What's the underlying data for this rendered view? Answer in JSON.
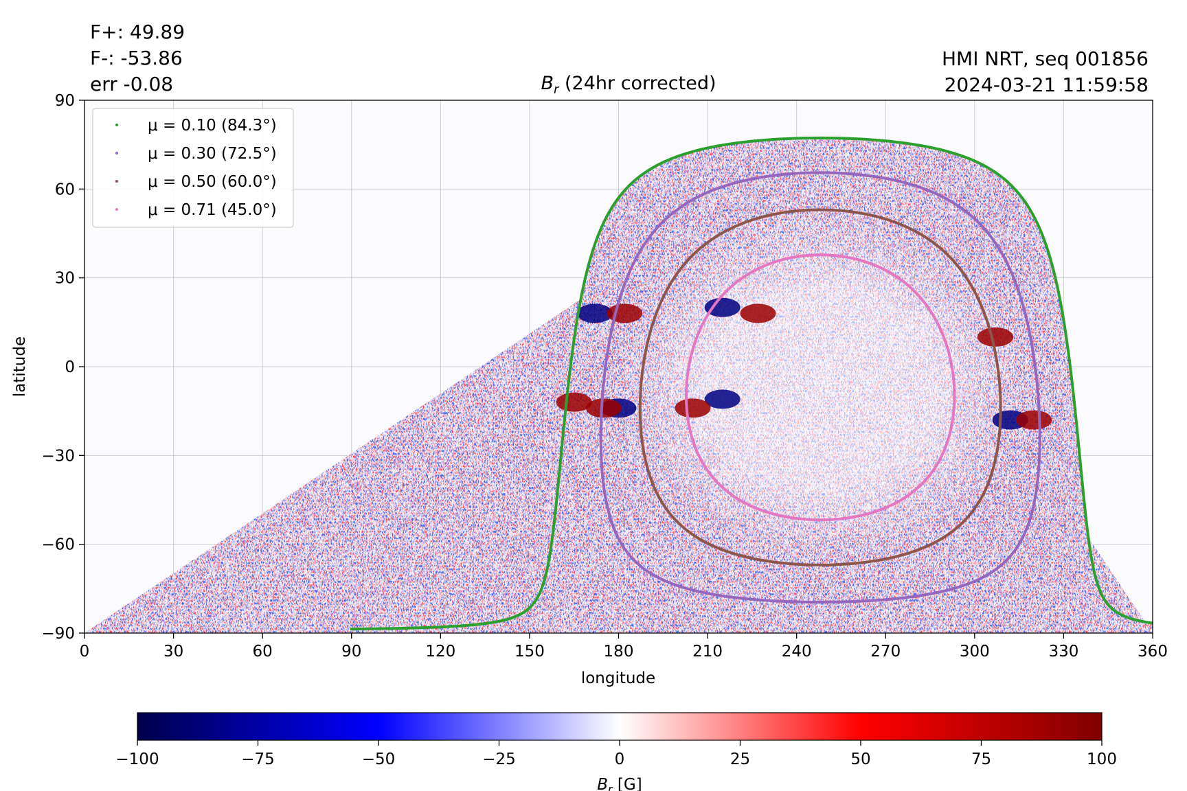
{
  "annotations": {
    "flux_positive": "F+: 49.89",
    "flux_negative": "F-: -53.86",
    "error": "err -0.08",
    "instrument": "HMI NRT, seq 001856",
    "timestamp": "2024-03-21 11:59:58"
  },
  "chart_data": {
    "type": "heatmap",
    "title_main": "B",
    "title_sub": "r",
    "title_rest": " (24hr corrected)",
    "xlabel": "longitude",
    "ylabel": "latitude",
    "xlim": [
      0,
      360
    ],
    "ylim": [
      -90,
      90
    ],
    "xticks": [
      0,
      30,
      60,
      90,
      120,
      150,
      180,
      210,
      240,
      270,
      300,
      330,
      360
    ],
    "yticks": [
      -90,
      -60,
      -30,
      0,
      30,
      60,
      90
    ],
    "yticklabels": [
      "−90",
      "−60",
      "−30",
      "0",
      "30",
      "60",
      "90"
    ],
    "grid": true,
    "legend_placement": "upper-left",
    "disk_center_lon": 248,
    "disk_center_lat": -7,
    "series": [
      {
        "label": "μ = 0.10 (84.3°)",
        "mu": 0.1,
        "angle_deg": 84.3,
        "color": "#2ca02c"
      },
      {
        "label": "μ = 0.30 (72.5°)",
        "mu": 0.3,
        "angle_deg": 72.5,
        "color": "#9467bd"
      },
      {
        "label": "μ = 0.50 (60.0°)",
        "mu": 0.5,
        "angle_deg": 60.0,
        "color": "#8c564b"
      },
      {
        "label": "μ = 0.71 (45.0°)",
        "mu": 0.71,
        "angle_deg": 45.0,
        "color": "#e377c2"
      }
    ],
    "active_regions": [
      {
        "lon": 215,
        "lat": 20,
        "polarity": "negative"
      },
      {
        "lon": 227,
        "lat": 18,
        "polarity": "positive"
      },
      {
        "lon": 172,
        "lat": 18,
        "polarity": "negative"
      },
      {
        "lon": 182,
        "lat": 18,
        "polarity": "positive"
      },
      {
        "lon": 215,
        "lat": -11,
        "polarity": "negative"
      },
      {
        "lon": 205,
        "lat": -14,
        "polarity": "positive"
      },
      {
        "lon": 180,
        "lat": -14,
        "polarity": "negative"
      },
      {
        "lon": 175,
        "lat": -14,
        "polarity": "positive"
      },
      {
        "lon": 312,
        "lat": -18,
        "polarity": "negative"
      },
      {
        "lon": 320,
        "lat": -18,
        "polarity": "positive"
      },
      {
        "lon": 307,
        "lat": 10,
        "polarity": "positive"
      },
      {
        "lon": 165,
        "lat": -12,
        "polarity": "positive"
      }
    ],
    "colorbar": {
      "label_main": "B",
      "label_sub": "r",
      "label_rest": " [G]",
      "min": -100,
      "max": 100,
      "ticks": [
        -100,
        -75,
        -50,
        -25,
        0,
        25,
        50,
        75,
        100
      ],
      "ticklabels": [
        "−100",
        "−75",
        "−50",
        "−25",
        "0",
        "25",
        "50",
        "75",
        "100"
      ],
      "colors": [
        "#00004c",
        "#0000ff",
        "#ffffff",
        "#ff0000",
        "#7f0000"
      ]
    }
  }
}
